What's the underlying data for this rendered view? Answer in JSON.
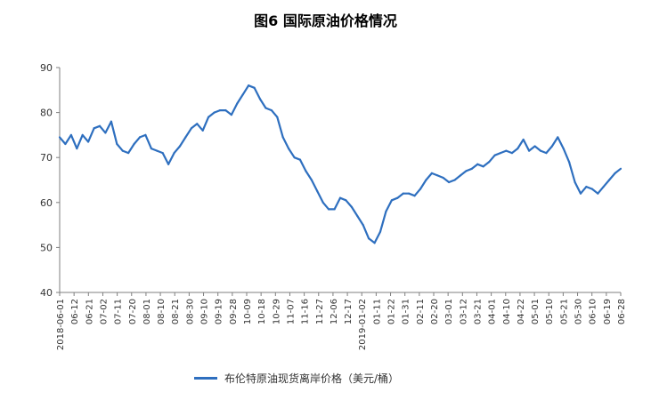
{
  "title": "图6 国际原油价格情况",
  "chart_data": {
    "type": "line",
    "title": "图6 国际原油价格情况",
    "xlabel": "",
    "ylabel": "",
    "ylim": [
      40,
      90
    ],
    "y_ticks": [
      40,
      50,
      60,
      70,
      80,
      90
    ],
    "grid": false,
    "legend_position": "bottom",
    "x_tick_labels": [
      "2018-06-01",
      "06-12",
      "06-21",
      "07-02",
      "07-11",
      "07-20",
      "08-01",
      "08-10",
      "08-21",
      "08-30",
      "09-10",
      "09-19",
      "09-28",
      "10-09",
      "10-18",
      "10-29",
      "11-07",
      "11-16",
      "11-27",
      "12-06",
      "12-17",
      "2019-01-02",
      "01-11",
      "01-22",
      "01-31",
      "02-11",
      "02-20",
      "03-01",
      "03-12",
      "03-21",
      "04-01",
      "04-10",
      "04-22",
      "05-01",
      "05-10",
      "05-21",
      "05-30",
      "06-10",
      "06-19",
      "06-28"
    ],
    "series": [
      {
        "name": "布伦特原油现货离岸价格（美元/桶）",
        "color": "#2e6fbf",
        "values": [
          74.5,
          73,
          75,
          72,
          75,
          73.5,
          76.5,
          77,
          75.5,
          78,
          73,
          71.5,
          71,
          73,
          74.5,
          75,
          72,
          71.5,
          71,
          68.5,
          71,
          72.5,
          74.5,
          76.5,
          77.5,
          76,
          79,
          80,
          80.5,
          80.5,
          79.5,
          82,
          84,
          86,
          85.5,
          83,
          81,
          80.5,
          79,
          74.5,
          72,
          70,
          69.5,
          67,
          65,
          62.5,
          60,
          58.5,
          58.5,
          61,
          60.5,
          59,
          57,
          55,
          52,
          51,
          53.5,
          58,
          60.5,
          61,
          62,
          62,
          61.5,
          63,
          65,
          66.5,
          66,
          65.5,
          64.5,
          65,
          66,
          67,
          67.5,
          68.5,
          68,
          69,
          70.5,
          71,
          71.5,
          71,
          72,
          74,
          71.5,
          72.5,
          71.5,
          71,
          72.5,
          74.5,
          72,
          69,
          64.5,
          62,
          63.5,
          63,
          62,
          63.5,
          65,
          66.5,
          67.5
        ]
      }
    ]
  }
}
